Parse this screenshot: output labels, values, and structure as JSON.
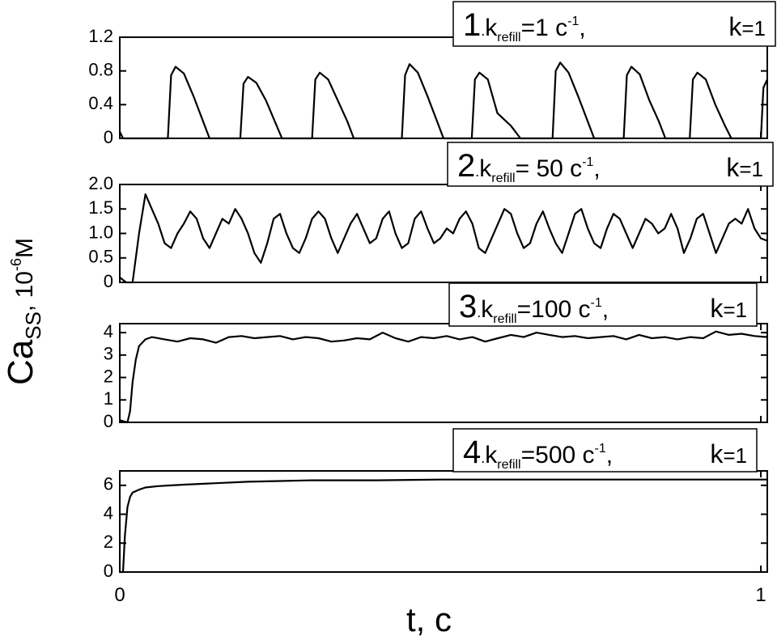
{
  "chart_data": [
    {
      "type": "line",
      "x": [
        0,
        0.005,
        0.075,
        0.08,
        0.087,
        0.1,
        0.115,
        0.13,
        0.14,
        0.188,
        0.193,
        0.2,
        0.213,
        0.228,
        0.243,
        0.253,
        0.3,
        0.305,
        0.312,
        0.325,
        0.34,
        0.355,
        0.365,
        0.44,
        0.445,
        0.452,
        0.465,
        0.48,
        0.495,
        0.505,
        0.549,
        0.554,
        0.561,
        0.574,
        0.589,
        0.61,
        0.625,
        0.675,
        0.68,
        0.687,
        0.7,
        0.715,
        0.73,
        0.74,
        0.786,
        0.791,
        0.798,
        0.811,
        0.826,
        0.841,
        0.851,
        0.889,
        0.894,
        0.901,
        0.914,
        0.929,
        0.944,
        0.954,
        1.0,
        1.004,
        1.01
      ],
      "series": [
        {
          "color": "#000000",
          "values": [
            0.08,
            0,
            0,
            0.75,
            0.85,
            0.77,
            0.5,
            0.2,
            0,
            0,
            0.65,
            0.73,
            0.66,
            0.45,
            0.18,
            0,
            0,
            0.7,
            0.78,
            0.7,
            0.45,
            0.2,
            0,
            0,
            0.75,
            0.88,
            0.78,
            0.5,
            0.2,
            0,
            0,
            0.7,
            0.78,
            0.7,
            0.3,
            0.15,
            0,
            0,
            0.8,
            0.9,
            0.78,
            0.5,
            0.2,
            0,
            0,
            0.75,
            0.85,
            0.76,
            0.45,
            0.2,
            0,
            0,
            0.7,
            0.78,
            0.7,
            0.4,
            0.15,
            0,
            0,
            0.6,
            0.7
          ]
        }
      ],
      "xlim": [
        0,
        1.01
      ],
      "ylim": [
        0,
        1.2
      ],
      "yticks": [
        0,
        0.4,
        0.8,
        1.2
      ],
      "annotation": {
        "number": "1",
        "dot": ".",
        "k": "k",
        "subscript": "refill",
        "rate": "=1 c",
        "superscript": "-1",
        "comma": ",",
        "k2": "k",
        "k2_value": "=1"
      }
    },
    {
      "type": "line",
      "x": [
        0,
        0.01,
        0.02,
        0.03,
        0.04,
        0.05,
        0.06,
        0.07,
        0.08,
        0.09,
        0.1,
        0.11,
        0.12,
        0.13,
        0.14,
        0.15,
        0.16,
        0.17,
        0.18,
        0.19,
        0.2,
        0.21,
        0.22,
        0.23,
        0.24,
        0.25,
        0.26,
        0.27,
        0.28,
        0.29,
        0.3,
        0.31,
        0.32,
        0.33,
        0.34,
        0.35,
        0.36,
        0.37,
        0.38,
        0.39,
        0.4,
        0.41,
        0.42,
        0.43,
        0.44,
        0.45,
        0.46,
        0.47,
        0.48,
        0.49,
        0.5,
        0.51,
        0.52,
        0.53,
        0.54,
        0.55,
        0.56,
        0.57,
        0.58,
        0.59,
        0.6,
        0.61,
        0.62,
        0.63,
        0.64,
        0.65,
        0.66,
        0.67,
        0.68,
        0.69,
        0.7,
        0.71,
        0.72,
        0.73,
        0.74,
        0.75,
        0.76,
        0.77,
        0.78,
        0.79,
        0.8,
        0.81,
        0.82,
        0.83,
        0.84,
        0.85,
        0.86,
        0.87,
        0.88,
        0.89,
        0.9,
        0.91,
        0.92,
        0.93,
        0.94,
        0.95,
        0.96,
        0.97,
        0.98,
        0.99,
        1.0,
        1.01
      ],
      "series": [
        {
          "color": "#000000",
          "values": [
            0.1,
            0,
            0,
            1.0,
            1.8,
            1.5,
            1.2,
            0.8,
            0.7,
            1.0,
            1.2,
            1.45,
            1.3,
            0.9,
            0.7,
            1.0,
            1.3,
            1.2,
            1.5,
            1.3,
            1.0,
            0.6,
            0.4,
            0.8,
            1.3,
            1.4,
            1.0,
            0.7,
            0.6,
            0.9,
            1.3,
            1.45,
            1.3,
            0.9,
            0.6,
            0.9,
            1.2,
            1.4,
            1.1,
            0.8,
            0.9,
            1.3,
            1.45,
            1.0,
            0.7,
            0.8,
            1.3,
            1.45,
            1.1,
            0.8,
            0.9,
            1.1,
            1.0,
            1.3,
            1.45,
            1.2,
            0.7,
            0.6,
            0.9,
            1.2,
            1.5,
            1.4,
            1.0,
            0.7,
            0.8,
            1.2,
            1.45,
            1.1,
            0.8,
            0.6,
            1.0,
            1.4,
            1.5,
            1.1,
            0.8,
            0.7,
            1.1,
            1.4,
            1.3,
            1.0,
            0.7,
            1.0,
            1.3,
            1.2,
            1.0,
            1.1,
            1.4,
            1.1,
            0.6,
            0.9,
            1.3,
            1.4,
            1.0,
            0.6,
            0.9,
            1.2,
            1.3,
            1.2,
            1.5,
            1.1,
            0.9,
            0.85
          ]
        }
      ],
      "xlim": [
        0,
        1.01
      ],
      "ylim": [
        0,
        2
      ],
      "yticks": [
        0,
        {
          "value": 0.5,
          "label": "0.5"
        },
        {
          "value": 1,
          "label": "1.0"
        },
        {
          "value": 1.5,
          "label": "1.5"
        },
        {
          "value": 2,
          "label": "2.0"
        }
      ],
      "annotation": {
        "number": "2",
        "dot": ".",
        "k": "k",
        "subscript": "refill",
        "rate": "= 50 c",
        "superscript": "-1",
        "comma": ",",
        "k2": "k",
        "k2_value": "=1"
      }
    },
    {
      "type": "line",
      "x": [
        0,
        0.005,
        0.012,
        0.016,
        0.02,
        0.025,
        0.03,
        0.04,
        0.05,
        0.07,
        0.09,
        0.11,
        0.13,
        0.15,
        0.17,
        0.19,
        0.21,
        0.23,
        0.25,
        0.27,
        0.29,
        0.31,
        0.33,
        0.35,
        0.37,
        0.39,
        0.41,
        0.43,
        0.45,
        0.47,
        0.49,
        0.51,
        0.53,
        0.55,
        0.57,
        0.59,
        0.61,
        0.63,
        0.65,
        0.67,
        0.69,
        0.71,
        0.73,
        0.75,
        0.77,
        0.79,
        0.81,
        0.83,
        0.85,
        0.87,
        0.89,
        0.91,
        0.93,
        0.95,
        0.97,
        0.99,
        1.01
      ],
      "series": [
        {
          "color": "#000000",
          "values": [
            0.1,
            0.05,
            0,
            0.5,
            1.8,
            2.8,
            3.4,
            3.7,
            3.8,
            3.7,
            3.6,
            3.75,
            3.7,
            3.55,
            3.8,
            3.85,
            3.75,
            3.8,
            3.85,
            3.7,
            3.8,
            3.75,
            3.6,
            3.65,
            3.75,
            3.7,
            4.0,
            3.75,
            3.6,
            3.8,
            3.75,
            3.85,
            3.7,
            3.8,
            3.6,
            3.75,
            3.9,
            3.8,
            4.0,
            3.9,
            3.8,
            3.85,
            3.75,
            3.8,
            3.85,
            3.7,
            3.9,
            3.75,
            3.8,
            3.7,
            3.8,
            3.75,
            4.05,
            3.9,
            3.95,
            3.85,
            3.8
          ]
        }
      ],
      "xlim": [
        0,
        1.01
      ],
      "ylim": [
        0,
        4.4
      ],
      "yticks": [
        0,
        1,
        2,
        3,
        4
      ],
      "annotation": {
        "number": "3",
        "dot": ".",
        "k": "k",
        "subscript": "refill",
        "rate": "=100 c",
        "superscript": "-1",
        "comma": ",",
        "k2": "k",
        "k2_value": "=1"
      }
    },
    {
      "type": "line",
      "x": [
        0,
        0.005,
        0.008,
        0.012,
        0.016,
        0.02,
        0.03,
        0.04,
        0.06,
        0.08,
        0.1,
        0.15,
        0.2,
        0.25,
        0.3,
        0.4,
        0.5,
        0.6,
        0.7,
        0.8,
        0.9,
        1.0,
        1.01
      ],
      "series": [
        {
          "color": "#000000",
          "values": [
            0,
            0,
            2.5,
            4.5,
            5.2,
            5.5,
            5.7,
            5.85,
            5.95,
            6.0,
            6.05,
            6.15,
            6.25,
            6.3,
            6.35,
            6.35,
            6.4,
            6.4,
            6.4,
            6.4,
            6.4,
            6.4,
            6.4
          ]
        }
      ],
      "xlim": [
        0,
        1.01
      ],
      "ylim": [
        0,
        7
      ],
      "yticks": [
        0,
        2,
        4,
        6
      ],
      "xticks": [
        0,
        1
      ],
      "xlabel": "t, c",
      "annotation": {
        "number": "4",
        "dot": ".",
        "k": "k",
        "subscript": "refill",
        "rate": "=500 c",
        "superscript": "-1",
        "comma": ",",
        "k2": "k",
        "k2_value": "=1"
      }
    }
  ],
  "ylabel": {
    "main": "Ca",
    "subscript": "SS",
    "unit": ", 10",
    "superscript": "-6",
    "unit_end": "M"
  }
}
